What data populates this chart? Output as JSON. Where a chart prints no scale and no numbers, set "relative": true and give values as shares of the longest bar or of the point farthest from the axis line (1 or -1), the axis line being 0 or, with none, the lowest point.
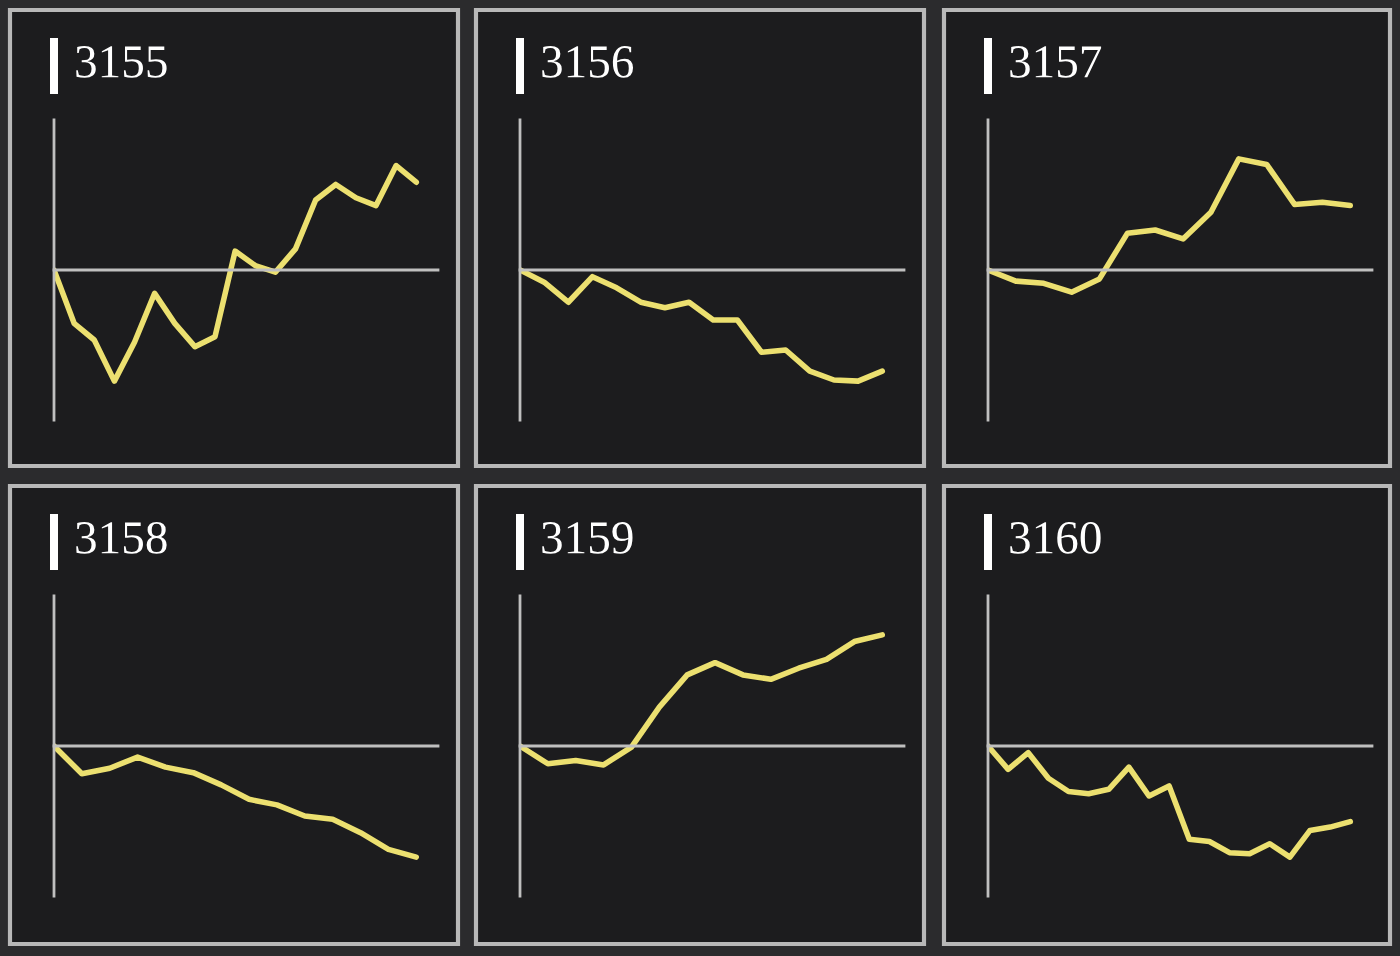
{
  "chart_data": [
    {
      "type": "line",
      "title": "3155",
      "relative": true,
      "color": "#ece070",
      "categories": [
        null,
        null,
        null,
        null,
        null,
        null,
        null,
        null,
        null,
        null,
        null,
        null,
        null,
        null,
        null,
        null,
        null,
        null,
        null
      ],
      "values": [
        0,
        -0.48,
        -0.63,
        -1,
        -0.65,
        -0.21,
        -0.48,
        -0.69,
        -0.6,
        0.17,
        0.04,
        -0.02,
        0.19,
        0.63,
        0.77,
        0.65,
        0.58,
        0.94,
        0.79
      ]
    },
    {
      "type": "line",
      "title": "3156",
      "relative": true,
      "color": "#ece070",
      "categories": [
        null,
        null,
        null,
        null,
        null,
        null,
        null,
        null,
        null,
        null,
        null,
        null,
        null,
        null,
        null,
        null
      ],
      "values": [
        0,
        -0.11,
        -0.29,
        -0.06,
        -0.16,
        -0.29,
        -0.34,
        -0.29,
        -0.45,
        -0.45,
        -0.74,
        -0.72,
        -0.91,
        -0.99,
        -1,
        -0.91
      ]
    },
    {
      "type": "line",
      "title": "3157",
      "relative": true,
      "color": "#ece070",
      "categories": [
        null,
        null,
        null,
        null,
        null,
        null,
        null,
        null,
        null,
        null,
        null,
        null,
        null,
        null
      ],
      "values": [
        0,
        -0.1,
        -0.12,
        -0.2,
        -0.08,
        0.33,
        0.36,
        0.28,
        0.52,
        1,
        0.95,
        0.59,
        0.61,
        0.58
      ]
    },
    {
      "type": "line",
      "title": "3158",
      "relative": true,
      "color": "#ece070",
      "categories": [
        null,
        null,
        null,
        null,
        null,
        null,
        null,
        null,
        null,
        null,
        null,
        null,
        null,
        null
      ],
      "values": [
        0,
        -0.25,
        -0.2,
        -0.1,
        -0.19,
        -0.24,
        -0.35,
        -0.48,
        -0.53,
        -0.63,
        -0.66,
        -0.78,
        -0.93,
        -1
      ]
    },
    {
      "type": "line",
      "title": "3159",
      "relative": true,
      "color": "#ece070",
      "categories": [
        null,
        null,
        null,
        null,
        null,
        null,
        null,
        null,
        null,
        null,
        null,
        null,
        null,
        null
      ],
      "values": [
        0,
        -0.16,
        -0.13,
        -0.17,
        -0.01,
        0.35,
        0.64,
        0.75,
        0.64,
        0.6,
        0.7,
        0.78,
        0.94,
        1
      ]
    },
    {
      "type": "line",
      "title": "3160",
      "relative": true,
      "color": "#ece070",
      "categories": [
        null,
        null,
        null,
        null,
        null,
        null,
        null,
        null,
        null,
        null,
        null,
        null,
        null,
        null,
        null,
        null,
        null,
        null,
        null
      ],
      "values": [
        0,
        -0.21,
        -0.06,
        -0.29,
        -0.41,
        -0.43,
        -0.39,
        -0.19,
        -0.45,
        -0.36,
        -0.84,
        -0.86,
        -0.96,
        -0.97,
        -0.88,
        -1,
        -0.76,
        -0.73,
        -0.68
      ]
    }
  ]
}
